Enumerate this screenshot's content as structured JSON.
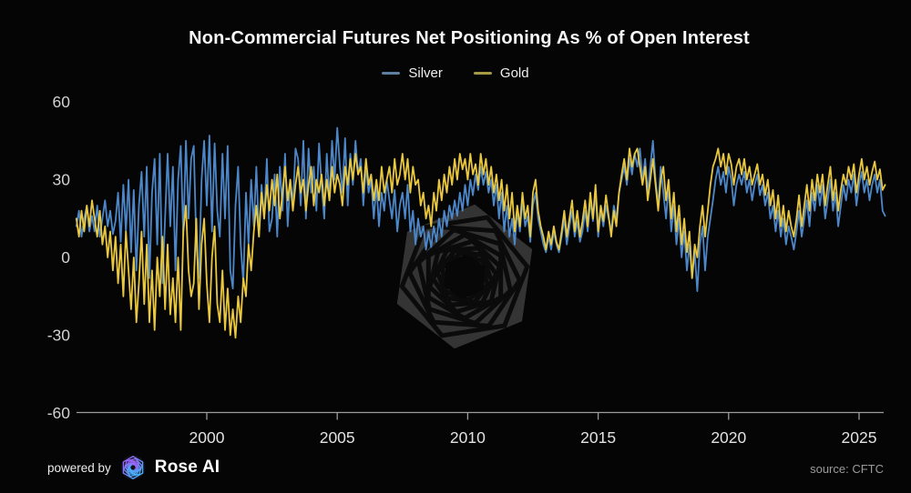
{
  "chart": {
    "title": "Non-Commercial Futures Net Positioning As % of Open Interest",
    "legend": [
      {
        "label": "Silver",
        "swatch_color": "#5d7fa3"
      },
      {
        "label": "Gold",
        "swatch_color": "#a89a45"
      }
    ]
  },
  "colors": {
    "background": "#050505",
    "silver_line": "#4c87c9",
    "gold_line": "#e9c73e",
    "axis": "#9c9c9c",
    "watermark_gray": "#343434",
    "logo_purple": "#a855f7",
    "logo_blue": "#38bdf8"
  },
  "footer": {
    "powered_by": "powered by",
    "brand": "Rose AI",
    "source": "source: CFTC"
  },
  "chart_data": {
    "type": "line",
    "title": "Non-Commercial Futures Net Positioning As % of Open Interest",
    "xlabel": "",
    "ylabel": "",
    "x_start": 1995.0,
    "x_step": 0.1,
    "xlim": [
      1995.0,
      2026.1
    ],
    "ylim": [
      -60,
      60
    ],
    "x_ticks": [
      2000,
      2005,
      2010,
      2015,
      2020,
      2025
    ],
    "y_ticks": [
      60,
      30,
      0,
      -30,
      -60
    ],
    "grid": false,
    "legend_position": "top-center",
    "source": "CFTC",
    "series": [
      {
        "name": "Silver",
        "color": "#4c87c9",
        "values": [
          12,
          18,
          8,
          15,
          20,
          10,
          16,
          10,
          20,
          8,
          15,
          22,
          12,
          18,
          9,
          14,
          25,
          6,
          28,
          10,
          30,
          2,
          26,
          -5,
          20,
          33,
          8,
          35,
          -8,
          25,
          38,
          5,
          40,
          -10,
          15,
          40,
          12,
          35,
          -5,
          30,
          43,
          8,
          45,
          15,
          38,
          43,
          5,
          -8,
          30,
          45,
          20,
          47,
          10,
          44,
          18,
          8,
          40,
          15,
          43,
          -5,
          -12,
          20,
          35,
          5,
          -10,
          25,
          5,
          30,
          12,
          35,
          8,
          28,
          15,
          38,
          10,
          15,
          32,
          8,
          35,
          18,
          40,
          12,
          30,
          20,
          42,
          38,
          20,
          45,
          15,
          42,
          25,
          35,
          18,
          44,
          28,
          15,
          40,
          22,
          45,
          30,
          50,
          35,
          25,
          46,
          20,
          40,
          28,
          45,
          32,
          38,
          20,
          35,
          25,
          30,
          15,
          28,
          12,
          25,
          18,
          30,
          22,
          15,
          26,
          10,
          20,
          25,
          15,
          28,
          10,
          18,
          5,
          15,
          8,
          12,
          3,
          10,
          4,
          12,
          6,
          15,
          8,
          18,
          12,
          20,
          15,
          22,
          16,
          25,
          18,
          28,
          20,
          30,
          24,
          32,
          26,
          35,
          28,
          33,
          25,
          30,
          20,
          28,
          15,
          25,
          10,
          20,
          8,
          15,
          5,
          18,
          10,
          22,
          12,
          16,
          6,
          20,
          25,
          15,
          10,
          5,
          2,
          8,
          3,
          10,
          5,
          2,
          8,
          15,
          5,
          12,
          18,
          8,
          14,
          6,
          10,
          18,
          10,
          22,
          14,
          25,
          8,
          18,
          12,
          20,
          15,
          10,
          20,
          15,
          25,
          30,
          35,
          28,
          38,
          32,
          40,
          35,
          42,
          30,
          38,
          25,
          35,
          45,
          30,
          20,
          35,
          25,
          15,
          28,
          10,
          20,
          5,
          15,
          0,
          10,
          -5,
          5,
          -8,
          2,
          -13,
          5,
          12,
          -5,
          8,
          15,
          22,
          30,
          35,
          28,
          33,
          25,
          35,
          30,
          20,
          28,
          32,
          28,
          33,
          25,
          30,
          22,
          28,
          32,
          24,
          28,
          20,
          25,
          15,
          20,
          10,
          18,
          8,
          15,
          5,
          12,
          8,
          3,
          10,
          18,
          8,
          15,
          22,
          12,
          25,
          18,
          28,
          20,
          28,
          15,
          22,
          30,
          18,
          25,
          12,
          20,
          28,
          22,
          30,
          25,
          32,
          20,
          28,
          33,
          25,
          30,
          22,
          28,
          32,
          25,
          30,
          18,
          16
        ]
      },
      {
        "name": "Gold",
        "color": "#e9c73e",
        "values": [
          15,
          8,
          18,
          10,
          20,
          12,
          22,
          15,
          8,
          18,
          5,
          12,
          0,
          10,
          -5,
          8,
          -10,
          5,
          -15,
          10,
          -5,
          -20,
          0,
          -25,
          -10,
          10,
          -18,
          5,
          -25,
          -5,
          -28,
          0,
          -15,
          8,
          -20,
          5,
          -22,
          -8,
          -25,
          0,
          -28,
          10,
          20,
          -5,
          -15,
          -10,
          15,
          -20,
          5,
          15,
          -10,
          -25,
          0,
          12,
          -18,
          -25,
          -5,
          -28,
          -12,
          -30,
          -20,
          -31,
          -15,
          -25,
          -8,
          -15,
          5,
          -5,
          10,
          20,
          8,
          25,
          15,
          28,
          18,
          30,
          20,
          32,
          15,
          25,
          35,
          22,
          30,
          18,
          28,
          35,
          25,
          30,
          18,
          28,
          35,
          20,
          30,
          25,
          32,
          20,
          30,
          22,
          35,
          25,
          32,
          28,
          20,
          35,
          28,
          38,
          30,
          40,
          32,
          35,
          25,
          38,
          28,
          32,
          22,
          30,
          22,
          35,
          25,
          30,
          35,
          25,
          38,
          28,
          32,
          40,
          30,
          38,
          25,
          35,
          28,
          30,
          20,
          25,
          15,
          20,
          12,
          25,
          18,
          30,
          22,
          32,
          25,
          35,
          28,
          38,
          30,
          40,
          34,
          38,
          30,
          40,
          32,
          36,
          28,
          40,
          32,
          38,
          28,
          35,
          25,
          32,
          22,
          30,
          18,
          28,
          15,
          25,
          10,
          20,
          12,
          25,
          15,
          20,
          8,
          25,
          30,
          18,
          12,
          8,
          3,
          10,
          5,
          12,
          6,
          3,
          10,
          18,
          8,
          15,
          22,
          10,
          18,
          8,
          14,
          22,
          12,
          25,
          15,
          28,
          10,
          20,
          14,
          24,
          16,
          8,
          18,
          12,
          25,
          32,
          38,
          30,
          42,
          35,
          40,
          42,
          35,
          28,
          35,
          22,
          30,
          38,
          28,
          18,
          30,
          35,
          22,
          30,
          15,
          25,
          10,
          20,
          5,
          15,
          2,
          10,
          -8,
          5,
          0,
          12,
          20,
          8,
          18,
          28,
          35,
          38,
          42,
          35,
          40,
          32,
          40,
          36,
          28,
          35,
          38,
          32,
          38,
          30,
          35,
          28,
          32,
          36,
          28,
          32,
          24,
          30,
          20,
          26,
          15,
          24,
          12,
          20,
          10,
          18,
          12,
          8,
          15,
          24,
          12,
          20,
          28,
          18,
          30,
          22,
          32,
          25,
          32,
          20,
          28,
          35,
          22,
          30,
          18,
          26,
          32,
          28,
          35,
          30,
          36,
          25,
          32,
          38,
          30,
          35,
          28,
          33,
          37,
          30,
          34,
          26,
          28
        ]
      }
    ]
  }
}
